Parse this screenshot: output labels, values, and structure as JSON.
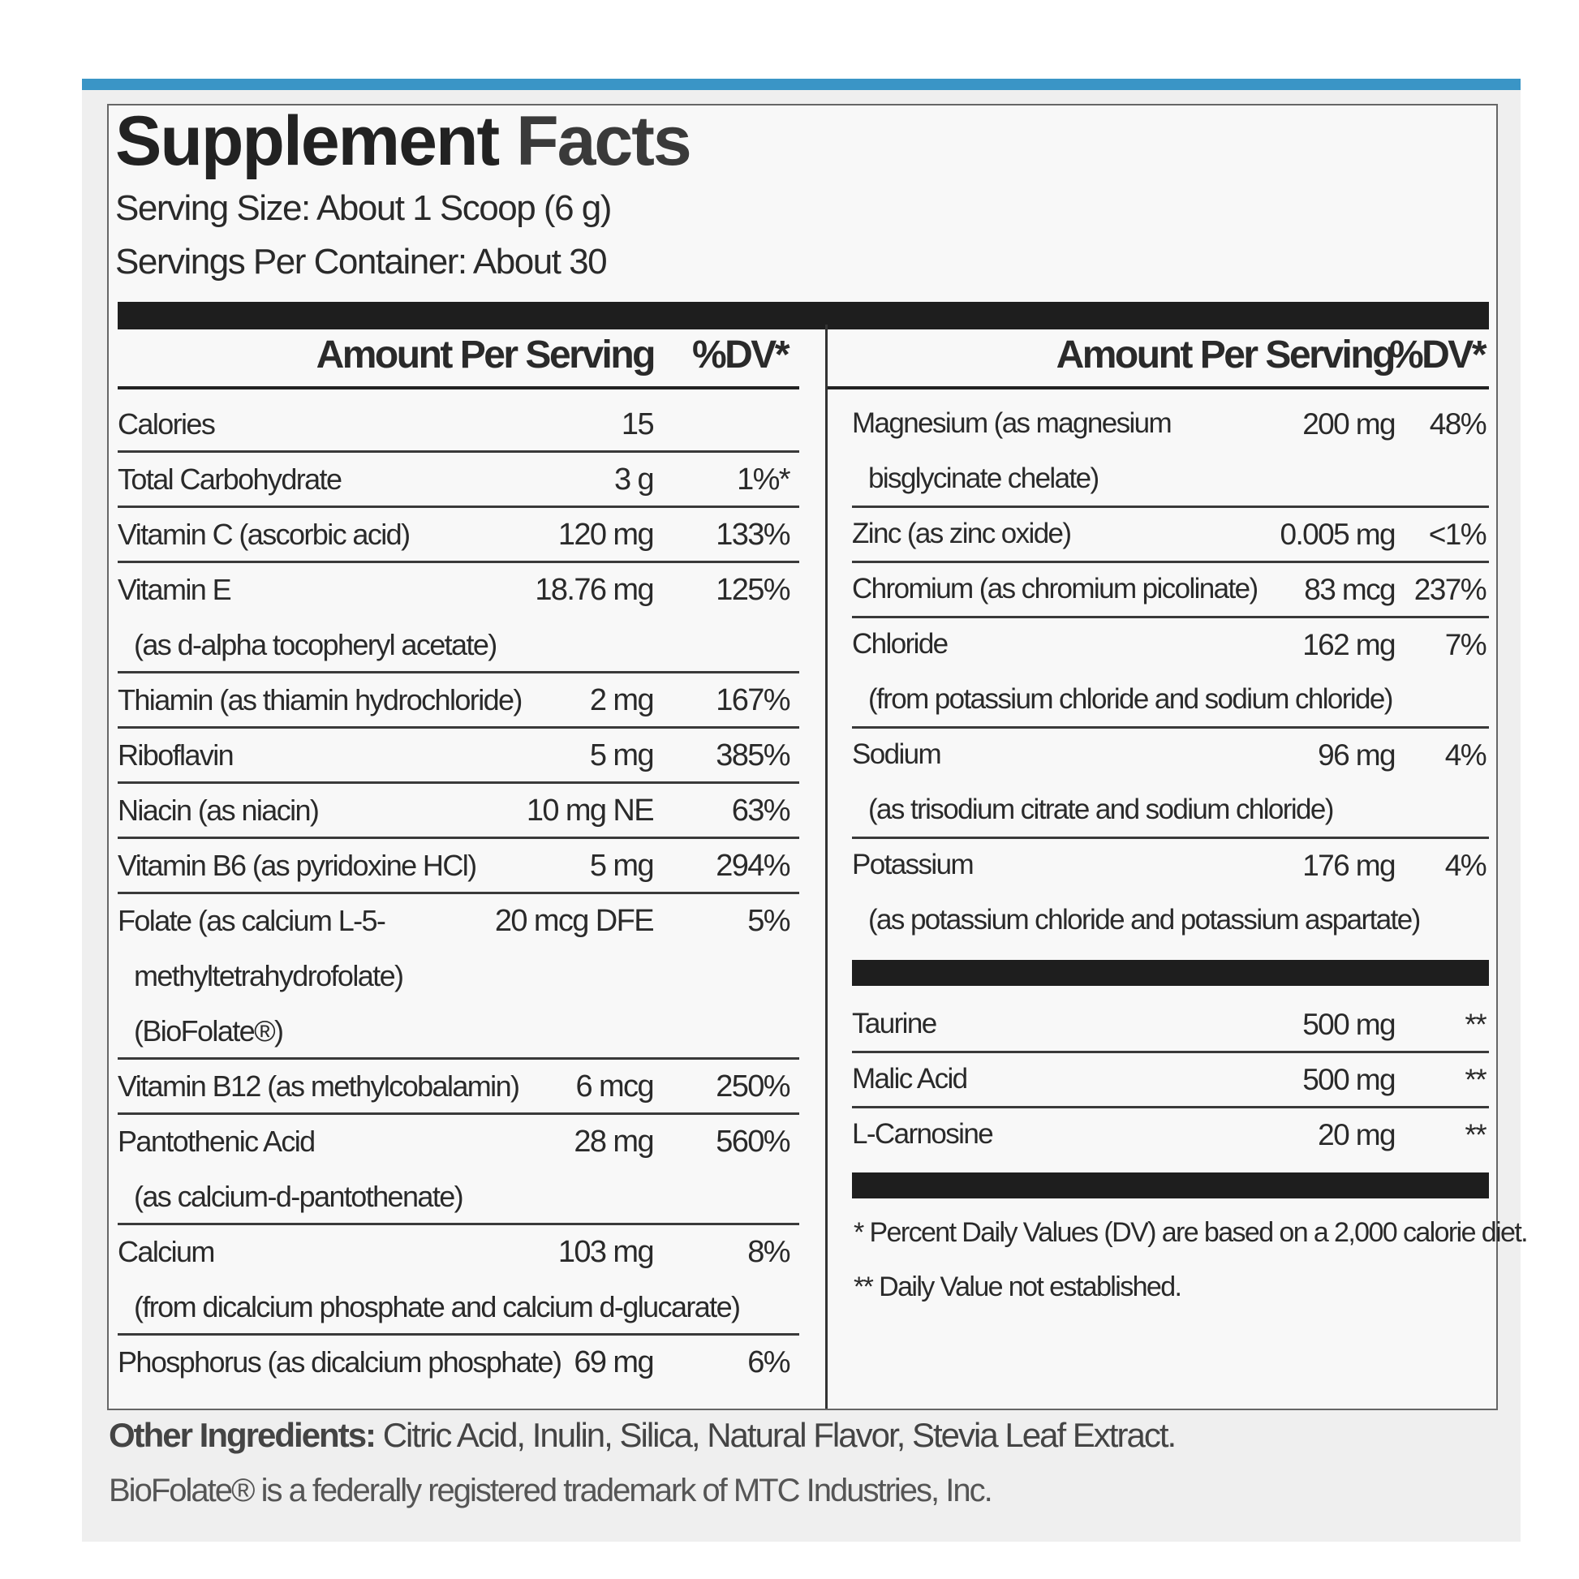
{
  "header": {
    "title_part1": "Supplement",
    "title_part2": "Facts",
    "serving_size": "Serving Size: About 1 Scoop (6 g)",
    "servings_per_container": "Servings Per Container: About 30"
  },
  "left": {
    "amount_header": "Amount Per Serving",
    "dv_header": "%DV*",
    "rows": [
      {
        "lines": [
          "Calories"
        ],
        "amount": "15"
      },
      {
        "lines": [
          "Total Carbohydrate"
        ],
        "amount": "3 g",
        "dv": "1%*"
      },
      {
        "lines": [
          "Vitamin C (ascorbic acid)"
        ],
        "amount": "120 mg",
        "dv": "133%"
      },
      {
        "lines": [
          "Vitamin E",
          "(as d-alpha tocopheryl acetate)"
        ],
        "amount": "18.76 mg",
        "dv": "125%"
      },
      {
        "lines": [
          "Thiamin (as thiamin hydrochloride)"
        ],
        "amount": "2 mg",
        "dv": "167%"
      },
      {
        "lines": [
          "Riboflavin"
        ],
        "amount": "5 mg",
        "dv": "385%"
      },
      {
        "lines": [
          "Niacin (as niacin)"
        ],
        "amount": "10 mg NE",
        "dv": "63%"
      },
      {
        "lines": [
          "Vitamin B6 (as pyridoxine HCl)"
        ],
        "amount": "5 mg",
        "dv": "294%"
      },
      {
        "lines": [
          "Folate (as calcium L-5-",
          "methyltetrahydrofolate)",
          "(BioFolate®)"
        ],
        "amount": "20 mcg DFE",
        "dv": "5%"
      },
      {
        "lines": [
          "Vitamin B12 (as methylcobalamin)"
        ],
        "amount": "6 mcg",
        "dv": "250%"
      },
      {
        "lines": [
          "Pantothenic Acid",
          "(as calcium-d-pantothenate)"
        ],
        "amount": "28 mg",
        "dv": "560%"
      },
      {
        "lines": [
          "Calcium",
          "(from dicalcium phosphate and calcium d-glucarate)"
        ],
        "amount": "103 mg",
        "dv": "8%"
      },
      {
        "lines": [
          "Phosphorus (as dicalcium phosphate)"
        ],
        "amount": "69 mg",
        "dv": "6%"
      }
    ]
  },
  "right": {
    "amount_header": "Amount Per Serving",
    "dv_header": "%DV*",
    "rows": [
      {
        "lines": [
          "Magnesium (as magnesium",
          "bisglycinate chelate)"
        ],
        "amount": "200 mg",
        "dv": "48%"
      },
      {
        "lines": [
          "Zinc (as zinc oxide)"
        ],
        "amount": "0.005 mg",
        "dv": "<1%"
      },
      {
        "lines": [
          "Chromium (as chromium picolinate)"
        ],
        "amount": "83 mcg",
        "dv": "237%"
      },
      {
        "lines": [
          "Chloride",
          "(from potassium chloride and sodium chloride)"
        ],
        "amount": "162 mg",
        "dv": "7%"
      },
      {
        "lines": [
          "Sodium",
          "(as trisodium citrate and sodium chloride)"
        ],
        "amount": "96 mg",
        "dv": "4%"
      },
      {
        "lines": [
          "Potassium",
          "(as potassium chloride and potassium aspartate)"
        ],
        "amount": "176 mg",
        "dv": "4%"
      }
    ],
    "other_rows": [
      {
        "lines": [
          "Taurine"
        ],
        "amount": "500 mg",
        "dv": "**"
      },
      {
        "lines": [
          "Malic Acid"
        ],
        "amount": "500 mg",
        "dv": "**"
      },
      {
        "lines": [
          "L-Carnosine"
        ],
        "amount": "20 mg",
        "dv": "**"
      }
    ],
    "footnotes": [
      "* Percent Daily Values (DV) are based on a 2,000 calorie diet.",
      "** Daily Value not established."
    ]
  },
  "footer": {
    "other_ingredients_label": "Other Ingredients:",
    "other_ingredients": "Citric Acid, Inulin, Silica, Natural Flavor, Stevia Leaf Extract.",
    "trademark": "BioFolate® is a federally registered trademark of MTC Industries, Inc."
  }
}
